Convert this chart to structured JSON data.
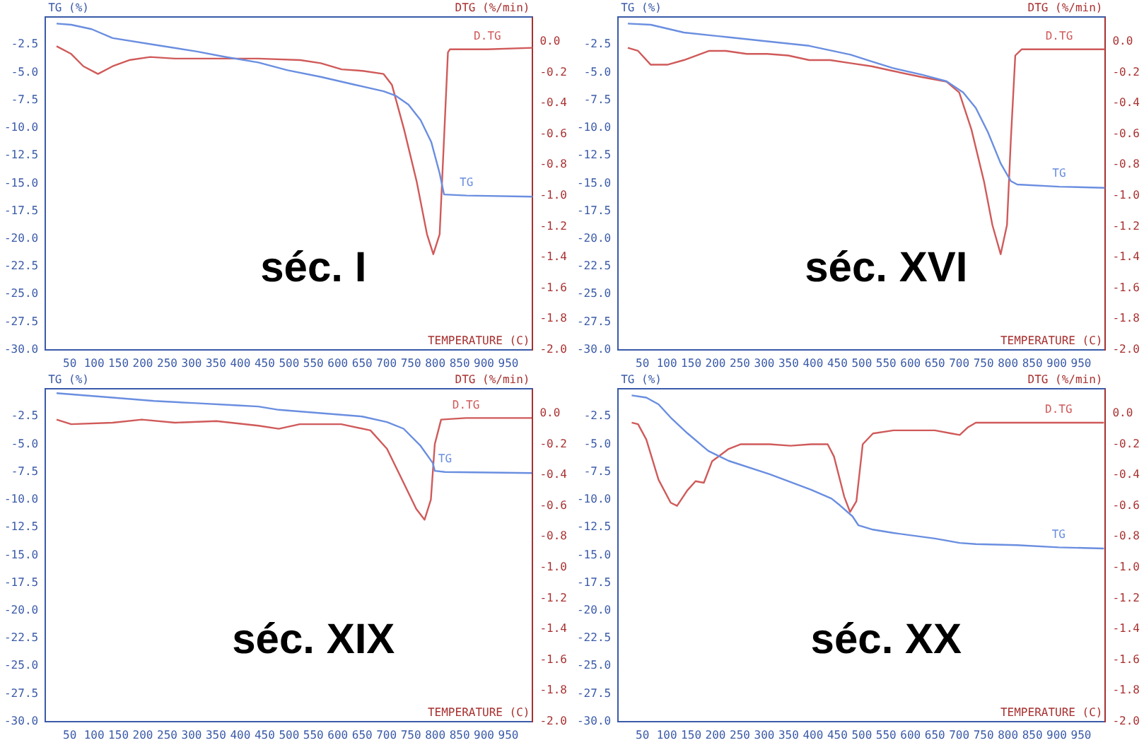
{
  "chart_data": [
    {
      "type": "line",
      "title": "séc. I",
      "xlabel": "TEMPERATURE (C)",
      "ylabel": "TG (%)",
      "y2label": "DTG (%/min)",
      "marker": "none",
      "xlim": [
        0,
        1000
      ],
      "xticks": [
        50,
        100,
        150,
        200,
        250,
        300,
        350,
        400,
        450,
        500,
        550,
        600,
        650,
        700,
        750,
        800,
        850,
        900,
        950
      ],
      "ylim": [
        -30,
        0
      ],
      "yticks": [
        -2.5,
        {
          "value": -5,
          "label": "-5.0"
        },
        -7.5,
        {
          "value": -10,
          "label": "-10.0"
        },
        -12.5,
        {
          "value": -15,
          "label": "-15.0"
        },
        -17.5,
        {
          "value": -20,
          "label": "-20.0"
        },
        -22.5,
        {
          "value": -25,
          "label": "-25.0"
        },
        -27.5,
        {
          "value": -30,
          "label": "-30.0"
        }
      ],
      "y2lim": [
        -2,
        0.16
      ],
      "y2ticks": [
        {
          "value": 0,
          "label": "0.0"
        },
        -0.2,
        -0.4,
        -0.6,
        -0.8,
        {
          "value": -1,
          "label": "-1.0"
        },
        -1.2,
        -1.4,
        -1.6,
        -1.8,
        {
          "value": -2,
          "label": "-2.0"
        }
      ],
      "series": [
        {
          "name": "TG",
          "color": "#6a8ee0",
          "x": [
            23,
            53,
            95,
            138,
            223,
            309,
            369,
            437,
            497,
            565,
            634,
            694,
            719,
            745,
            770,
            792,
            809,
            818,
            864,
            1000
          ],
          "values": [
            -0.6,
            -0.7,
            -1.1,
            -1.9,
            -2.5,
            -3.1,
            -3.6,
            -4.1,
            -4.8,
            -5.4,
            -6.1,
            -6.7,
            -7.1,
            -7.9,
            -9.3,
            -11.3,
            -14.1,
            -16,
            -16.1,
            -16.2
          ]
        },
        {
          "name": "D.TG",
          "color": "#d05a5a",
          "axis": "y2",
          "x": [
            23,
            53,
            78,
            108,
            138,
            172,
            215,
            266,
            352,
            437,
            523,
            565,
            608,
            651,
            694,
            711,
            736,
            762,
            783,
            796,
            809,
            818,
            826,
            830,
            907,
            1000
          ],
          "values": [
            -0.03,
            -0.08,
            -0.16,
            -0.21,
            -0.16,
            -0.12,
            -0.1,
            -0.11,
            -0.11,
            -0.11,
            -0.12,
            -0.14,
            -0.18,
            -0.19,
            -0.21,
            -0.28,
            -0.57,
            -0.91,
            -1.25,
            -1.38,
            -1.25,
            -0.63,
            -0.07,
            -0.05,
            -0.05,
            -0.04
          ]
        }
      ]
    },
    {
      "type": "line",
      "title": "séc. XVI",
      "xlabel": "TEMPERATURE (C)",
      "ylabel": "TG (%)",
      "y2label": "DTG (%/min)",
      "marker": "none",
      "xlim": [
        0,
        1000
      ],
      "xticks": [
        50,
        100,
        150,
        200,
        250,
        300,
        350,
        400,
        450,
        500,
        550,
        600,
        650,
        700,
        750,
        800,
        850,
        900,
        950
      ],
      "ylim": [
        -30,
        0
      ],
      "yticks": [
        -2.5,
        {
          "value": -5,
          "label": "-5.0"
        },
        -7.5,
        {
          "value": -10,
          "label": "-10.0"
        },
        -12.5,
        {
          "value": -15,
          "label": "-15.0"
        },
        -17.5,
        {
          "value": -20,
          "label": "-20.0"
        },
        -22.5,
        {
          "value": -25,
          "label": "-25.0"
        },
        -27.5,
        {
          "value": -30,
          "label": "-30.0"
        }
      ],
      "y2lim": [
        -2,
        0.16
      ],
      "y2ticks": [
        {
          "value": 0,
          "label": "0.0"
        },
        -0.2,
        -0.4,
        -0.6,
        -0.8,
        {
          "value": -1,
          "label": "-1.0"
        },
        -1.2,
        -1.4,
        -1.6,
        -1.8,
        {
          "value": -2,
          "label": "-2.0"
        }
      ],
      "series": [
        {
          "name": "TG",
          "color": "#6a8ee0",
          "x": [
            20,
            67,
            135,
            221,
            306,
            392,
            477,
            520,
            563,
            623,
            674,
            708,
            734,
            759,
            785,
            806,
            819,
            905,
            999
          ],
          "values": [
            -0.6,
            -0.7,
            -1.4,
            -1.8,
            -2.2,
            -2.6,
            -3.4,
            -4,
            -4.6,
            -5.2,
            -5.8,
            -6.8,
            -8.2,
            -10.4,
            -13.2,
            -14.8,
            -15.1,
            -15.3,
            -15.4
          ]
        },
        {
          "name": "D.TG",
          "color": "#d05a5a",
          "axis": "y2",
          "x": [
            20,
            41,
            67,
            101,
            135,
            187,
            221,
            264,
            306,
            349,
            392,
            435,
            477,
            520,
            563,
            623,
            674,
            700,
            725,
            751,
            768,
            785,
            798,
            806,
            815,
            828,
            905,
            999
          ],
          "values": [
            -0.04,
            -0.06,
            -0.15,
            -0.15,
            -0.12,
            -0.06,
            -0.06,
            -0.08,
            -0.08,
            -0.09,
            -0.12,
            -0.12,
            -0.14,
            -0.16,
            -0.19,
            -0.23,
            -0.26,
            -0.33,
            -0.57,
            -0.91,
            -1.19,
            -1.38,
            -1.19,
            -0.63,
            -0.09,
            -0.05,
            -0.05,
            -0.05
          ]
        }
      ]
    },
    {
      "type": "line",
      "title": "séc. XIX",
      "xlabel": "TEMPERATURE (C)",
      "ylabel": "TG (%)",
      "y2label": "DTG (%/min)",
      "marker": "none",
      "xlim": [
        0,
        1000
      ],
      "xticks": [
        50,
        100,
        150,
        200,
        250,
        300,
        350,
        400,
        450,
        500,
        550,
        600,
        650,
        700,
        750,
        800,
        850,
        900,
        950
      ],
      "ylim": [
        -30,
        0
      ],
      "yticks": [
        -2.5,
        {
          "value": -5,
          "label": "-5.0"
        },
        -7.5,
        {
          "value": -10,
          "label": "-10.0"
        },
        -12.5,
        {
          "value": -15,
          "label": "-15.0"
        },
        -17.5,
        {
          "value": -20,
          "label": "-20.0"
        },
        -22.5,
        {
          "value": -25,
          "label": "-25.0"
        },
        -27.5,
        {
          "value": -30,
          "label": "-30.0"
        }
      ],
      "y2lim": [
        -2,
        0.16
      ],
      "y2ticks": [
        {
          "value": 0,
          "label": "0.0"
        },
        -0.2,
        -0.4,
        -0.6,
        -0.8,
        {
          "value": -1,
          "label": "-1.0"
        },
        -1.2,
        -1.4,
        -1.6,
        -1.8,
        {
          "value": -2,
          "label": "-2.0"
        }
      ],
      "series": [
        {
          "name": "TG",
          "color": "#6a8ee0",
          "x": [
            23,
            138,
            223,
            309,
            394,
            437,
            479,
            565,
            650,
            701,
            735,
            769,
            795,
            799,
            820,
            998
          ],
          "values": [
            -0.4,
            -0.8,
            -1.1,
            -1.3,
            -1.5,
            -1.6,
            -1.9,
            -2.2,
            -2.5,
            -3,
            -3.6,
            -5.1,
            -6.7,
            -7.4,
            -7.5,
            -7.6
          ]
        },
        {
          "name": "D.TG",
          "color": "#d05a5a",
          "axis": "y2",
          "x": [
            23,
            53,
            138,
            198,
            266,
            351,
            437,
            479,
            522,
            607,
            667,
            701,
            735,
            761,
            778,
            791,
            799,
            812,
            863,
            998
          ],
          "values": [
            -0.04,
            -0.07,
            -0.06,
            -0.04,
            -0.06,
            -0.05,
            -0.08,
            -0.1,
            -0.07,
            -0.07,
            -0.11,
            -0.23,
            -0.45,
            -0.62,
            -0.69,
            -0.56,
            -0.2,
            -0.04,
            -0.03,
            -0.03
          ]
        }
      ]
    },
    {
      "type": "line",
      "title": "séc. XX",
      "xlabel": "TEMPERATURE (C)",
      "ylabel": "TG (%)",
      "y2label": "DTG (%/min)",
      "marker": "none",
      "xlim": [
        0,
        1000
      ],
      "xticks": [
        50,
        100,
        150,
        200,
        250,
        300,
        350,
        400,
        450,
        500,
        550,
        600,
        650,
        700,
        750,
        800,
        850,
        900,
        950
      ],
      "ylim": [
        -30,
        0
      ],
      "yticks": [
        -2.5,
        {
          "value": -5,
          "label": "-5.0"
        },
        -7.5,
        {
          "value": -10,
          "label": "-10.0"
        },
        -12.5,
        {
          "value": -15,
          "label": "-15.0"
        },
        -17.5,
        {
          "value": -20,
          "label": "-20.0"
        },
        -22.5,
        {
          "value": -25,
          "label": "-25.0"
        },
        -27.5,
        {
          "value": -30,
          "label": "-30.0"
        }
      ],
      "y2lim": [
        -2,
        0.16
      ],
      "y2ticks": [
        {
          "value": 0,
          "label": "0.0"
        },
        -0.2,
        -0.4,
        -0.6,
        -0.8,
        {
          "value": -1,
          "label": "-1.0"
        },
        -1.2,
        -1.4,
        -1.6,
        -1.8,
        {
          "value": -2,
          "label": "-2.0"
        }
      ],
      "series": [
        {
          "name": "TG",
          "color": "#6a8ee0",
          "x": [
            28,
            58,
            83,
            108,
            142,
            185,
            227,
            311,
            396,
            438,
            455,
            481,
            493,
            523,
            565,
            650,
            701,
            734,
            819,
            904,
            997
          ],
          "values": [
            -0.6,
            -0.8,
            -1.4,
            -2.6,
            -4,
            -5.6,
            -6.5,
            -7.7,
            -9.1,
            -9.9,
            -10.5,
            -11.5,
            -12.3,
            -12.7,
            -13,
            -13.5,
            -13.9,
            -14,
            -14.1,
            -14.3,
            -14.4
          ]
        },
        {
          "name": "D.TG",
          "color": "#d05a5a",
          "axis": "y2",
          "x": [
            28,
            41,
            58,
            83,
            108,
            121,
            142,
            159,
            176,
            193,
            227,
            252,
            311,
            354,
            396,
            430,
            443,
            464,
            476,
            489,
            502,
            523,
            565,
            650,
            684,
            701,
            718,
            734,
            819,
            904,
            997
          ],
          "values": [
            -0.06,
            -0.07,
            -0.17,
            -0.43,
            -0.58,
            -0.6,
            -0.5,
            -0.44,
            -0.45,
            -0.31,
            -0.23,
            -0.2,
            -0.2,
            -0.21,
            -0.2,
            -0.2,
            -0.28,
            -0.54,
            -0.64,
            -0.57,
            -0.2,
            -0.13,
            -0.11,
            -0.11,
            -0.13,
            -0.14,
            -0.09,
            -0.06,
            -0.06,
            -0.06,
            -0.06
          ]
        }
      ]
    }
  ]
}
